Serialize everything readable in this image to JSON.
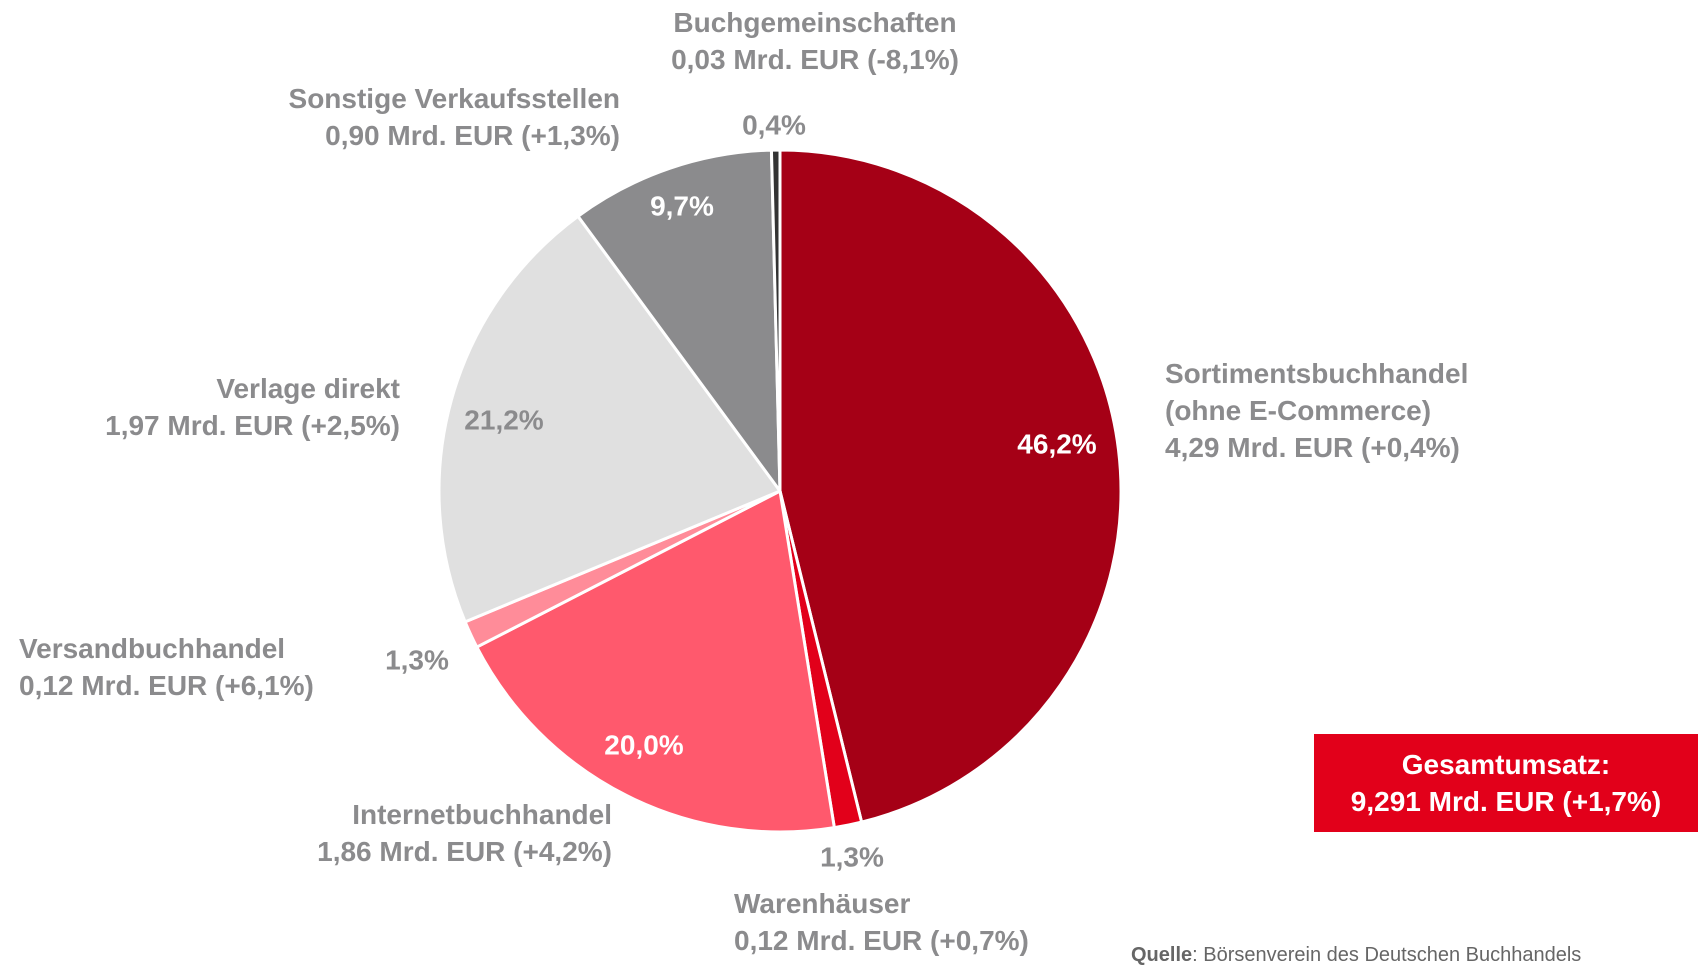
{
  "chart_data": {
    "type": "pie",
    "categories": [
      "Sortimentsbuchhandel (ohne E-Commerce)",
      "Warenhäuser",
      "Internetbuchhandel",
      "Versandbuchhandel",
      "Verlage direkt",
      "Sonstige Verkaufsstellen",
      "Buchgemeinschaften"
    ],
    "details": [
      "4,29 Mrd. EUR (+0,4%)",
      "0,12 Mrd. EUR (+0,7%)",
      "1,86 Mrd. EUR (+4,2%)",
      "0,12 Mrd. EUR (+6,1%)",
      "1,97 Mrd. EUR (+2,5%)",
      "0,90 Mrd. EUR (+1,3%)",
      "0,03 Mrd. EUR (-8,1%)"
    ],
    "values": [
      46.2,
      1.3,
      20.0,
      1.3,
      21.2,
      9.7,
      0.4
    ],
    "value_labels": [
      "46,2%",
      "1,3%",
      "20,0%",
      "1,3%",
      "21,2%",
      "9,7%",
      "0,4%"
    ],
    "colors": [
      "#a50016",
      "#e2001a",
      "#ff596d",
      "#ff8c99",
      "#e0e0e0",
      "#8b8b8d",
      "#333333"
    ],
    "total_label": "Gesamtumsatz:",
    "total": "9,291 Mrd. EUR (+1,7%)",
    "source_label": "Quelle",
    "source": ": Börsenverein des Deutschen Buchhandels"
  }
}
